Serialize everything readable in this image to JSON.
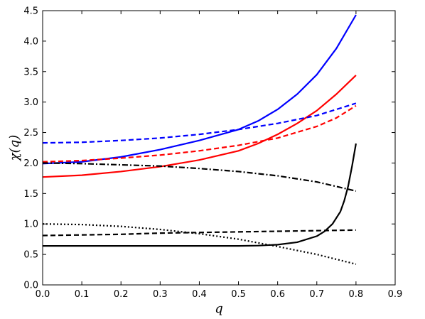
{
  "chart_data": {
    "type": "line",
    "title": "",
    "xlabel": "q",
    "ylabel": "χ(q)",
    "xlim": [
      0.0,
      0.9
    ],
    "ylim": [
      0.0,
      4.5
    ],
    "xticks": [
      "0.0",
      "0.1",
      "0.2",
      "0.3",
      "0.4",
      "0.5",
      "0.6",
      "0.7",
      "0.8",
      "0.9"
    ],
    "yticks": [
      "0.0",
      "0.5",
      "1.0",
      "1.5",
      "2.0",
      "2.5",
      "3.0",
      "3.5",
      "4.0",
      "4.5"
    ],
    "grid": false,
    "legend": "none",
    "series": [
      {
        "color": "#0000ff",
        "linestyle": "solid",
        "x": [
          0.0,
          0.1,
          0.2,
          0.3,
          0.4,
          0.5,
          0.55,
          0.6,
          0.65,
          0.7,
          0.75,
          0.8
        ],
        "y": [
          1.99,
          2.02,
          2.1,
          2.22,
          2.37,
          2.55,
          2.69,
          2.88,
          3.13,
          3.45,
          3.88,
          4.43
        ]
      },
      {
        "color": "#ff0000",
        "linestyle": "solid",
        "x": [
          0.0,
          0.1,
          0.2,
          0.3,
          0.4,
          0.5,
          0.55,
          0.6,
          0.65,
          0.7,
          0.75,
          0.8
        ],
        "y": [
          1.77,
          1.8,
          1.86,
          1.94,
          2.05,
          2.2,
          2.32,
          2.47,
          2.65,
          2.86,
          3.13,
          3.44
        ]
      },
      {
        "color": "#0000ff",
        "linestyle": "dashed",
        "x": [
          0.0,
          0.1,
          0.2,
          0.3,
          0.4,
          0.5,
          0.6,
          0.7,
          0.8
        ],
        "y": [
          2.33,
          2.34,
          2.37,
          2.41,
          2.47,
          2.55,
          2.65,
          2.78,
          2.98
        ]
      },
      {
        "color": "#ff0000",
        "linestyle": "dashed",
        "x": [
          0.0,
          0.1,
          0.2,
          0.3,
          0.4,
          0.5,
          0.6,
          0.7,
          0.75,
          0.8
        ],
        "y": [
          2.02,
          2.04,
          2.08,
          2.13,
          2.2,
          2.29,
          2.41,
          2.6,
          2.74,
          2.94
        ]
      },
      {
        "color": "#000000",
        "linestyle": "dashdot",
        "x": [
          0.0,
          0.1,
          0.2,
          0.3,
          0.4,
          0.5,
          0.6,
          0.7,
          0.8
        ],
        "y": [
          2.0,
          1.99,
          1.97,
          1.95,
          1.91,
          1.86,
          1.79,
          1.69,
          1.54
        ]
      },
      {
        "color": "#000000",
        "linestyle": "dotted",
        "x": [
          0.0,
          0.1,
          0.2,
          0.3,
          0.4,
          0.5,
          0.6,
          0.7,
          0.8
        ],
        "y": [
          1.0,
          0.99,
          0.96,
          0.91,
          0.84,
          0.75,
          0.63,
          0.5,
          0.34
        ]
      },
      {
        "color": "#000000",
        "linestyle": "dashed",
        "x": [
          0.0,
          0.1,
          0.2,
          0.3,
          0.4,
          0.5,
          0.6,
          0.7,
          0.8
        ],
        "y": [
          0.81,
          0.82,
          0.83,
          0.85,
          0.86,
          0.87,
          0.88,
          0.89,
          0.9
        ]
      },
      {
        "color": "#000000",
        "linestyle": "solid",
        "x": [
          0.0,
          0.1,
          0.2,
          0.3,
          0.4,
          0.5,
          0.55,
          0.6,
          0.65,
          0.7,
          0.72,
          0.74,
          0.76,
          0.77,
          0.78,
          0.79,
          0.8
        ],
        "y": [
          0.64,
          0.64,
          0.64,
          0.64,
          0.64,
          0.64,
          0.645,
          0.66,
          0.7,
          0.8,
          0.88,
          1.0,
          1.2,
          1.38,
          1.62,
          1.95,
          2.32
        ]
      }
    ]
  }
}
